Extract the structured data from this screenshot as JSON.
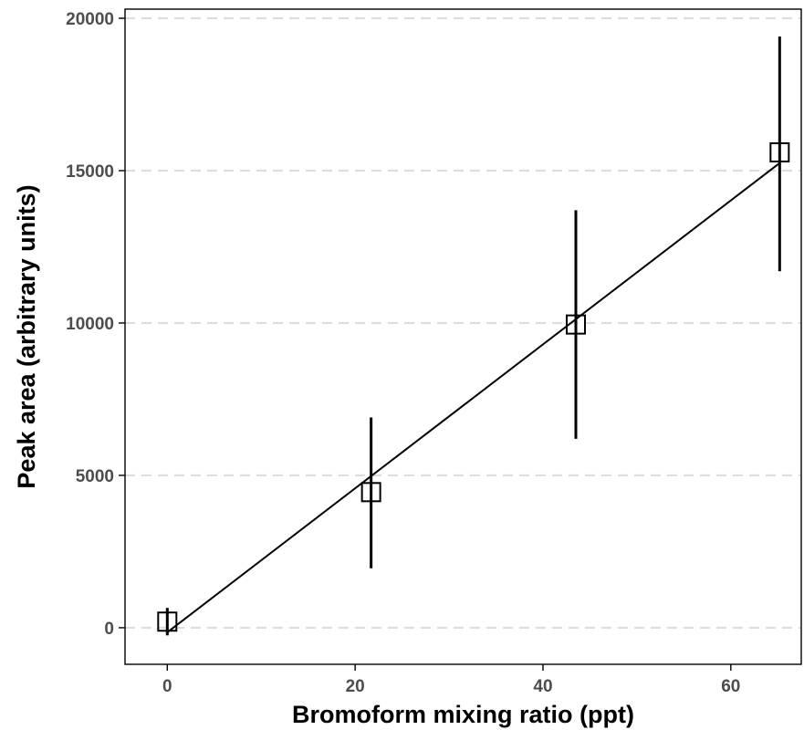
{
  "chart_data": {
    "type": "scatter",
    "title": "",
    "xlabel": "Bromoform mixing ratio (ppt)",
    "ylabel": "Peak area (arbitrary units)",
    "xlim": [
      -4.5,
      67.5
    ],
    "ylim": [
      -1200,
      20300
    ],
    "x_ticks": [
      0,
      20,
      40,
      60
    ],
    "y_ticks": [
      0,
      5000,
      10000,
      15000,
      20000
    ],
    "x_tick_labels": [
      "0",
      "20",
      "40",
      "60"
    ],
    "y_tick_labels": [
      "0",
      "5000",
      "10000",
      "15000",
      "20000"
    ],
    "grid": "horizontal dashed major gridlines",
    "legend": "none",
    "marker": "open-square",
    "points": [
      {
        "x": 0,
        "y": 200,
        "y_low": -250,
        "y_high": 650
      },
      {
        "x": 21.7,
        "y": 4450,
        "y_low": 1950,
        "y_high": 6900
      },
      {
        "x": 43.5,
        "y": 9950,
        "y_low": 6200,
        "y_high": 13700
      },
      {
        "x": 65.2,
        "y": 15600,
        "y_low": 11700,
        "y_high": 19400
      }
    ],
    "fit_line": {
      "x": [
        0,
        65.2
      ],
      "y": [
        -150,
        15250
      ]
    },
    "colors": {
      "points": "#000000",
      "grid": "#dddddd",
      "axis": "#000000",
      "tick_text": "#4d4d4d"
    }
  }
}
